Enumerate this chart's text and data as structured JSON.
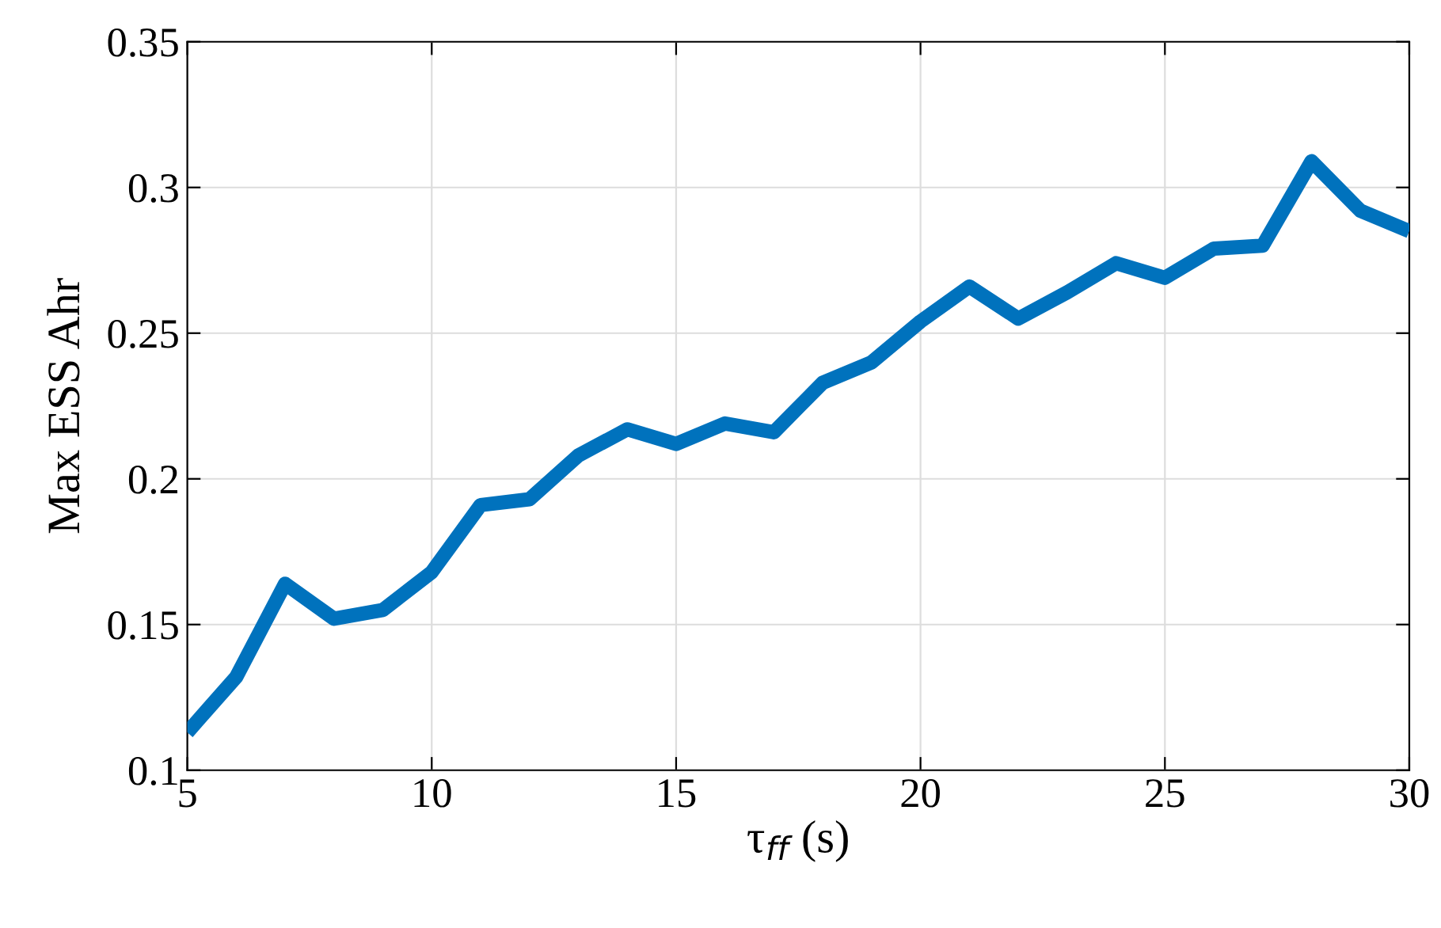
{
  "chart_data": {
    "type": "line",
    "xlabel": "τ$_{ff}$ (s)",
    "ylabel": "Max ESS Ahr",
    "x": [
      5,
      6,
      7,
      8,
      9,
      10,
      11,
      12,
      13,
      14,
      15,
      16,
      17,
      18,
      19,
      20,
      21,
      22,
      23,
      24,
      25,
      26,
      27,
      28,
      29,
      30
    ],
    "series": [
      {
        "color": "#0072bd",
        "values": [
          0.113,
          0.132,
          0.164,
          0.152,
          0.155,
          0.168,
          0.191,
          0.193,
          0.208,
          0.217,
          0.212,
          0.219,
          0.216,
          0.233,
          0.24,
          0.254,
          0.266,
          0.255,
          0.264,
          0.274,
          0.269,
          0.279,
          0.28,
          0.309,
          0.292,
          0.285
        ]
      }
    ],
    "xlim": [
      5,
      30
    ],
    "ylim": [
      0.1,
      0.35
    ],
    "xticks": [
      5,
      10,
      15,
      20,
      25,
      30
    ],
    "yticks": [
      0.1,
      0.15,
      0.2,
      0.25,
      0.3,
      0.35
    ],
    "grid": true,
    "marker": "none",
    "line_style": "solid"
  }
}
